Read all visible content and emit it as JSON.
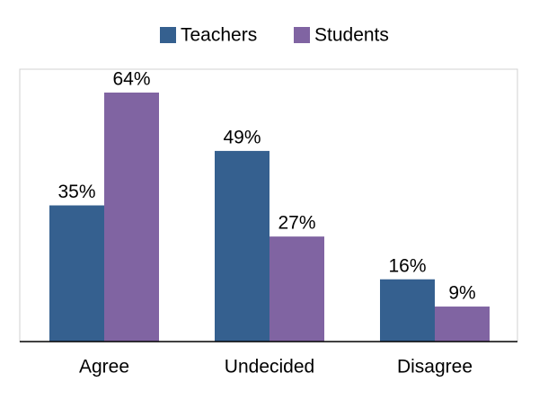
{
  "chart_data": {
    "type": "bar",
    "categories": [
      "Agree",
      "Undecided",
      "Disagree"
    ],
    "series": [
      {
        "name": "Teachers",
        "color": "#35608f",
        "values": [
          35,
          49,
          16
        ],
        "value_labels": [
          "35%",
          "49%",
          "16%"
        ]
      },
      {
        "name": "Students",
        "color": "#8064a2",
        "values": [
          64,
          27,
          9
        ],
        "value_labels": [
          "64%",
          "27%",
          "9%"
        ]
      }
    ],
    "ylim": [
      0,
      70
    ],
    "legend": "top"
  }
}
